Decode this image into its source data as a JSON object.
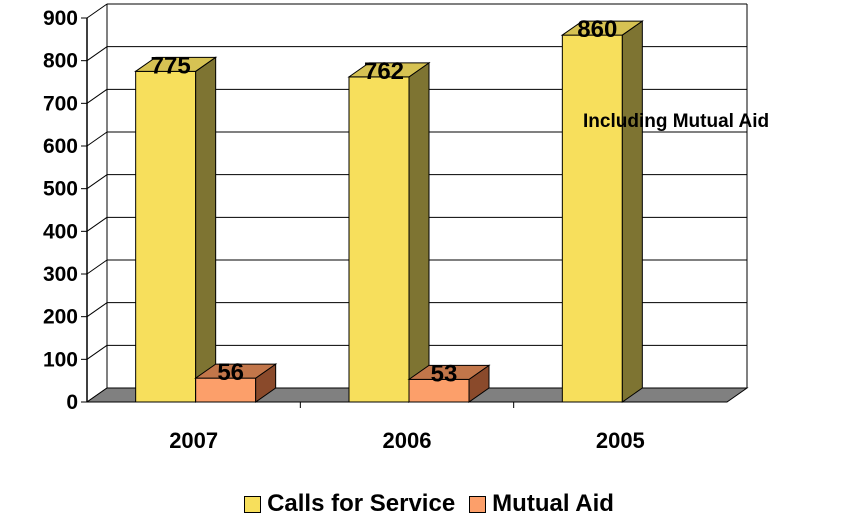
{
  "chart_data": {
    "type": "bar",
    "title": "",
    "xlabel": "",
    "ylabel": "",
    "categories": [
      "2007",
      "2006",
      "2005"
    ],
    "series": [
      {
        "name": "Calls for Service",
        "values": [
          775,
          762,
          860
        ],
        "color": "#F7DF5C",
        "side_color": "#7E7432",
        "top_color": "#D6C253"
      },
      {
        "name": "Mutual Aid",
        "values": [
          56,
          53,
          null
        ],
        "color": "#FC9F6A",
        "side_color": "#8A4A2B",
        "top_color": "#C2764A"
      }
    ],
    "data_labels": [
      [
        "775",
        "762",
        "860"
      ],
      [
        "56",
        "53",
        ""
      ]
    ],
    "ylim": [
      0,
      900
    ],
    "yticks": [
      0,
      100,
      200,
      300,
      400,
      500,
      600,
      700,
      800,
      900
    ],
    "grid": true,
    "legend_position": "bottom",
    "annotation": "Including Mutual Aid",
    "floor_color": "#808080",
    "style": "3d"
  }
}
